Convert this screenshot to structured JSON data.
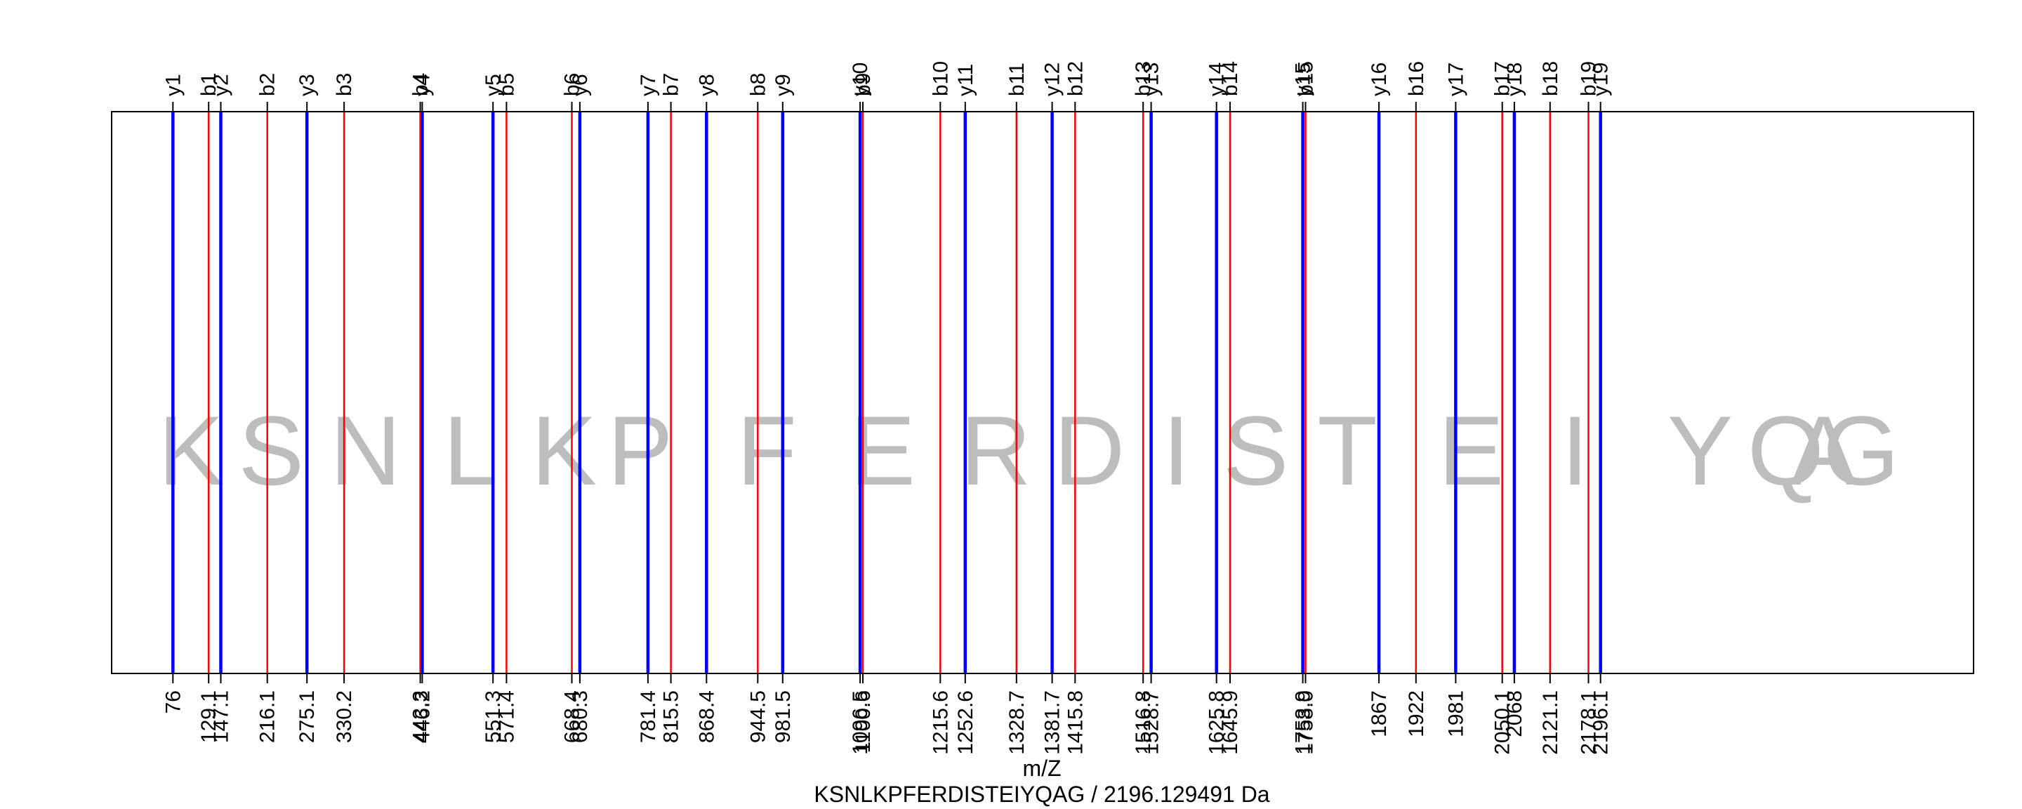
{
  "chart_data": {
    "type": "spectrum",
    "xlabel": "m/Z",
    "subtitle": "KSNLKPFERDISTEIYQAG / 2196.129491 Da",
    "xlim": [
      -15,
      2750
    ],
    "colors": {
      "b": "#ff0000",
      "y": "#0000ff",
      "sequence": "#bdbdbd",
      "frame": "#000000"
    },
    "ions": [
      {
        "label": "y1",
        "series": "y",
        "mz": 76.0,
        "tick": "76"
      },
      {
        "label": "b1",
        "series": "b",
        "mz": 129.1,
        "tick": "129.1"
      },
      {
        "label": "y2",
        "series": "y",
        "mz": 147.1,
        "tick": "147.1"
      },
      {
        "label": "b2",
        "series": "b",
        "mz": 216.1,
        "tick": "216.1"
      },
      {
        "label": "y3",
        "series": "y",
        "mz": 275.1,
        "tick": "275.1"
      },
      {
        "label": "b3",
        "series": "b",
        "mz": 330.2,
        "tick": "330.2"
      },
      {
        "label": "b4",
        "series": "b",
        "mz": 443.3,
        "tick": "443.3"
      },
      {
        "label": "y4",
        "series": "y",
        "mz": 446.2,
        "tick": "446.2"
      },
      {
        "label": "y5",
        "series": "y",
        "mz": 551.3,
        "tick": "551.3"
      },
      {
        "label": "b5",
        "series": "b",
        "mz": 571.4,
        "tick": "571.4"
      },
      {
        "label": "b6",
        "series": "b",
        "mz": 668.4,
        "tick": "668.4"
      },
      {
        "label": "y6",
        "series": "y",
        "mz": 680.3,
        "tick": "680.3"
      },
      {
        "label": "y7",
        "series": "y",
        "mz": 781.4,
        "tick": "781.4"
      },
      {
        "label": "b7",
        "series": "b",
        "mz": 815.5,
        "tick": "815.5"
      },
      {
        "label": "y8",
        "series": "y",
        "mz": 868.4,
        "tick": "868.4"
      },
      {
        "label": "b8",
        "series": "b",
        "mz": 944.5,
        "tick": "944.5"
      },
      {
        "label": "y9",
        "series": "y",
        "mz": 981.5,
        "tick": "981.5"
      },
      {
        "label": "y10",
        "series": "y",
        "mz": 1096.5,
        "tick": "1096.5"
      },
      {
        "label": "b9",
        "series": "b",
        "mz": 1100.6,
        "tick": "1100.6"
      },
      {
        "label": "b10",
        "series": "b",
        "mz": 1215.6,
        "tick": "1215.6"
      },
      {
        "label": "y11",
        "series": "y",
        "mz": 1252.6,
        "tick": "1252.6"
      },
      {
        "label": "b11",
        "series": "b",
        "mz": 1328.7,
        "tick": "1328.7"
      },
      {
        "label": "y12",
        "series": "y",
        "mz": 1381.7,
        "tick": "1381.7"
      },
      {
        "label": "b12",
        "series": "b",
        "mz": 1415.8,
        "tick": "1415.8"
      },
      {
        "label": "b13",
        "series": "b",
        "mz": 1516.8,
        "tick": "1516.8"
      },
      {
        "label": "y13",
        "series": "y",
        "mz": 1528.7,
        "tick": "1528.7"
      },
      {
        "label": "y14",
        "series": "y",
        "mz": 1625.8,
        "tick": "1625.8"
      },
      {
        "label": "b14",
        "series": "b",
        "mz": 1645.9,
        "tick": "1645.9"
      },
      {
        "label": "y15",
        "series": "y",
        "mz": 1753.9,
        "tick": "1753.9"
      },
      {
        "label": "b15",
        "series": "b",
        "mz": 1758.0,
        "tick": "1758.0"
      },
      {
        "label": "y16",
        "series": "y",
        "mz": 1867.0,
        "tick": "1867"
      },
      {
        "label": "b16",
        "series": "b",
        "mz": 1922.0,
        "tick": "1922"
      },
      {
        "label": "y17",
        "series": "y",
        "mz": 1981.0,
        "tick": "1981"
      },
      {
        "label": "b17",
        "series": "b",
        "mz": 2050.1,
        "tick": "2050.1"
      },
      {
        "label": "y18",
        "series": "y",
        "mz": 2068.0,
        "tick": "2068"
      },
      {
        "label": "b18",
        "series": "b",
        "mz": 2121.1,
        "tick": "2121.1"
      },
      {
        "label": "b19",
        "series": "b",
        "mz": 2178.1,
        "tick": "2178.1"
      },
      {
        "label": "y19",
        "series": "y",
        "mz": 2196.1,
        "tick": "2196.1"
      }
    ],
    "sequence": [
      {
        "letter": "K",
        "mz": 103
      },
      {
        "letter": "S",
        "mz": 222
      },
      {
        "letter": "N",
        "mz": 362
      },
      {
        "letter": "L",
        "mz": 518
      },
      {
        "letter": "K",
        "mz": 657
      },
      {
        "letter": "P",
        "mz": 770
      },
      {
        "letter": "F",
        "mz": 958
      },
      {
        "letter": "E",
        "mz": 1130
      },
      {
        "letter": "R",
        "mz": 1298
      },
      {
        "letter": "D",
        "mz": 1437
      },
      {
        "letter": "I",
        "mz": 1566
      },
      {
        "letter": "S",
        "mz": 1684
      },
      {
        "letter": "T",
        "mz": 1820
      },
      {
        "letter": "E",
        "mz": 2004
      },
      {
        "letter": "I",
        "mz": 2158
      },
      {
        "letter": "Y",
        "mz": 2344
      },
      {
        "letter": "Q",
        "mz": 2471
      },
      {
        "letter": "A",
        "mz": 2527
      },
      {
        "letter": "G",
        "mz": 2583
      }
    ]
  }
}
